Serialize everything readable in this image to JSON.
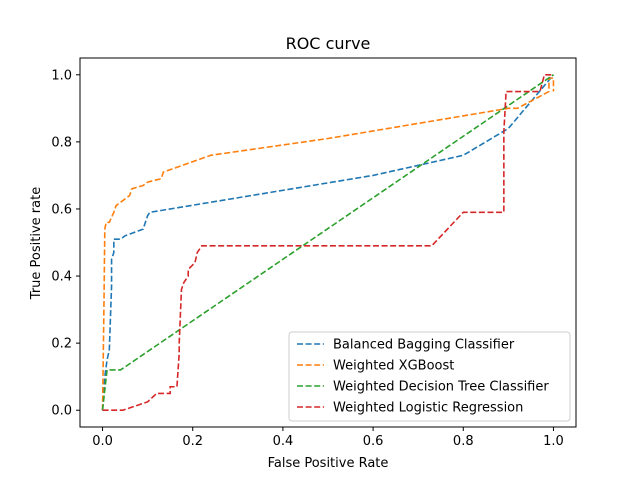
{
  "chart_data": {
    "type": "line",
    "title": "ROC curve",
    "xlabel": "False Positive Rate",
    "ylabel": "True Positive rate",
    "xlim": [
      -0.05,
      1.05
    ],
    "ylim": [
      -0.05,
      1.05
    ],
    "xticks": [
      0.0,
      0.2,
      0.4,
      0.6,
      0.8,
      1.0
    ],
    "yticks": [
      0.0,
      0.2,
      0.4,
      0.6,
      0.8,
      1.0
    ],
    "tick_labels_x": [
      "0.0",
      "0.2",
      "0.4",
      "0.6",
      "0.8",
      "1.0"
    ],
    "tick_labels_y": [
      "0.0",
      "0.2",
      "0.4",
      "0.6",
      "0.8",
      "1.0"
    ],
    "grid": false,
    "legend": "lower-right",
    "series": [
      {
        "name": "Balanced Bagging Classifier",
        "color": "#1f77b4",
        "x": [
          0.0,
          0.005,
          0.01,
          0.015,
          0.02,
          0.02,
          0.025,
          0.025,
          0.04,
          0.05,
          0.09,
          0.1,
          0.105,
          0.6,
          0.8,
          0.9,
          0.95,
          1.0
        ],
        "y": [
          0.0,
          0.1,
          0.15,
          0.18,
          0.37,
          0.45,
          0.47,
          0.51,
          0.51,
          0.52,
          0.54,
          0.58,
          0.59,
          0.7,
          0.76,
          0.84,
          0.92,
          1.0
        ]
      },
      {
        "name": "Weighted XGBoost",
        "color": "#ff7f0e",
        "x": [
          0.0,
          0.003,
          0.005,
          0.008,
          0.015,
          0.025,
          0.03,
          0.04,
          0.06,
          0.065,
          0.09,
          0.1,
          0.13,
          0.135,
          0.24,
          0.5,
          0.9,
          0.92,
          0.99,
          0.99,
          1.0,
          1.0
        ],
        "y": [
          0.0,
          0.3,
          0.54,
          0.56,
          0.56,
          0.59,
          0.61,
          0.62,
          0.64,
          0.66,
          0.67,
          0.68,
          0.69,
          0.71,
          0.76,
          0.81,
          0.9,
          0.9,
          0.95,
          0.99,
          0.99,
          0.95
        ]
      },
      {
        "name": "Weighted Decision Tree Classifier",
        "color": "#2ca02c",
        "x": [
          0.0,
          0.01,
          0.04,
          1.0
        ],
        "y": [
          0.0,
          0.12,
          0.12,
          1.0
        ]
      },
      {
        "name": "Weighted Logistic Regression",
        "color": "#d62728",
        "x": [
          0.0,
          0.005,
          0.045,
          0.1,
          0.12,
          0.15,
          0.15,
          0.165,
          0.17,
          0.17,
          0.175,
          0.18,
          0.19,
          0.19,
          0.205,
          0.21,
          0.22,
          0.73,
          0.8,
          0.89,
          0.89,
          0.895,
          0.93,
          0.97,
          0.98,
          1.0
        ],
        "y": [
          0.0,
          0.0,
          0.0,
          0.025,
          0.05,
          0.05,
          0.07,
          0.07,
          0.17,
          0.2,
          0.36,
          0.38,
          0.4,
          0.42,
          0.44,
          0.47,
          0.49,
          0.49,
          0.59,
          0.59,
          0.83,
          0.95,
          0.95,
          0.95,
          1.0,
          1.0
        ]
      }
    ]
  }
}
